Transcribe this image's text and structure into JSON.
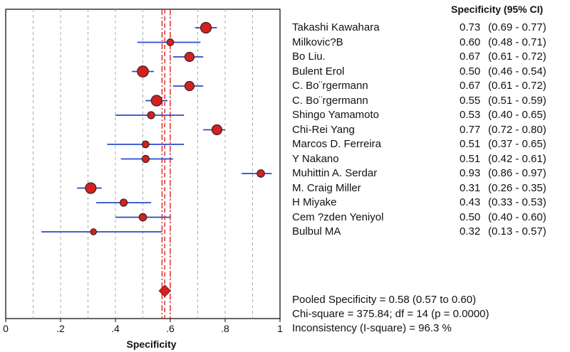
{
  "chart_data": {
    "type": "forest",
    "xlabel": "Specificity",
    "xlim": [
      0,
      1
    ],
    "x_ticks": [
      0,
      0.2,
      0.4,
      0.6,
      0.8,
      1.0
    ],
    "x_tick_labels": [
      "0",
      ".2",
      ".4",
      ".6",
      ".8",
      "1"
    ],
    "grid_lines": [
      0.1,
      0.2,
      0.3,
      0.4,
      0.5,
      0.6,
      0.7,
      0.8,
      0.9
    ],
    "column_header": "Specificity (95% CI)",
    "pooled_estimate": 0.58,
    "pooled_ci": [
      0.57,
      0.6
    ],
    "studies": [
      {
        "name": "Takashi Kawahara",
        "value": 0.73,
        "ci": [
          0.69,
          0.77
        ],
        "value_label": "0.73",
        "ci_label": "(0.69 - 0.77)",
        "weight": 1.0
      },
      {
        "name": "Milkovic?B",
        "value": 0.6,
        "ci": [
          0.48,
          0.71
        ],
        "value_label": "0.60",
        "ci_label": "(0.48 - 0.71)",
        "weight": 0.45
      },
      {
        "name": "Bo Liu.",
        "value": 0.67,
        "ci": [
          0.61,
          0.72
        ],
        "value_label": "0.67",
        "ci_label": "(0.61 - 0.72)",
        "weight": 0.8
      },
      {
        "name": "Bulent Erol",
        "value": 0.5,
        "ci": [
          0.46,
          0.54
        ],
        "value_label": "0.50",
        "ci_label": "(0.46 - 0.54)",
        "weight": 1.05
      },
      {
        "name": "C. Bo¨rgermann",
        "value": 0.67,
        "ci": [
          0.61,
          0.72
        ],
        "value_label": "0.67",
        "ci_label": "(0.61 - 0.72)",
        "weight": 0.8
      },
      {
        "name": "C. Bo¨rgermann",
        "value": 0.55,
        "ci": [
          0.51,
          0.59
        ],
        "value_label": "0.55",
        "ci_label": "(0.51 - 0.59)",
        "weight": 1.0
      },
      {
        "name": "Shingo Yamamoto",
        "value": 0.53,
        "ci": [
          0.4,
          0.65
        ],
        "value_label": "0.53",
        "ci_label": "(0.40 - 0.65)",
        "weight": 0.5
      },
      {
        "name": "Chi-Rei Yang",
        "value": 0.77,
        "ci": [
          0.72,
          0.8
        ],
        "value_label": "0.77",
        "ci_label": "(0.72 - 0.80)",
        "weight": 0.9
      },
      {
        "name": "Marcos D. Ferreira",
        "value": 0.51,
        "ci": [
          0.37,
          0.65
        ],
        "value_label": "0.51",
        "ci_label": "(0.37 - 0.65)",
        "weight": 0.45
      },
      {
        "name": "Y Nakano",
        "value": 0.51,
        "ci": [
          0.42,
          0.61
        ],
        "value_label": "0.51",
        "ci_label": "(0.42 - 0.61)",
        "weight": 0.5
      },
      {
        "name": "Muhittin A. Serdar",
        "value": 0.93,
        "ci": [
          0.86,
          0.97
        ],
        "value_label": "0.93",
        "ci_label": "(0.86 - 0.97)",
        "weight": 0.55
      },
      {
        "name": "M. Craig Miller",
        "value": 0.31,
        "ci": [
          0.26,
          0.35
        ],
        "value_label": "0.31",
        "ci_label": "(0.26 - 0.35)",
        "weight": 1.0
      },
      {
        "name": "H Miyake",
        "value": 0.43,
        "ci": [
          0.33,
          0.53
        ],
        "value_label": "0.43",
        "ci_label": "(0.33 - 0.53)",
        "weight": 0.5
      },
      {
        "name": "Cem ?zden Yeniyol",
        "value": 0.5,
        "ci": [
          0.4,
          0.6
        ],
        "value_label": "0.50",
        "ci_label": "(0.40 - 0.60)",
        "weight": 0.55
      },
      {
        "name": "Bulbul MA",
        "value": 0.32,
        "ci": [
          0.13,
          0.57
        ],
        "value_label": "0.32",
        "ci_label": "(0.13 - 0.57)",
        "weight": 0.35
      }
    ],
    "summary": {
      "pooled_text": "Pooled Specificity = 0.58 (0.57 to 0.60)",
      "chi_text": "Chi-square = 375.84; df = 14 (p = 0.0000)",
      "inconsistency_text": "Inconsistency (I-square) = 96.3 %"
    },
    "colors": {
      "marker_fill": "#d42020",
      "marker_stroke": "#3a2020",
      "ci_line": "#2b48c8",
      "pooled_line": "#e02020",
      "grid": "#a8a8a8",
      "frame": "#000000"
    }
  }
}
